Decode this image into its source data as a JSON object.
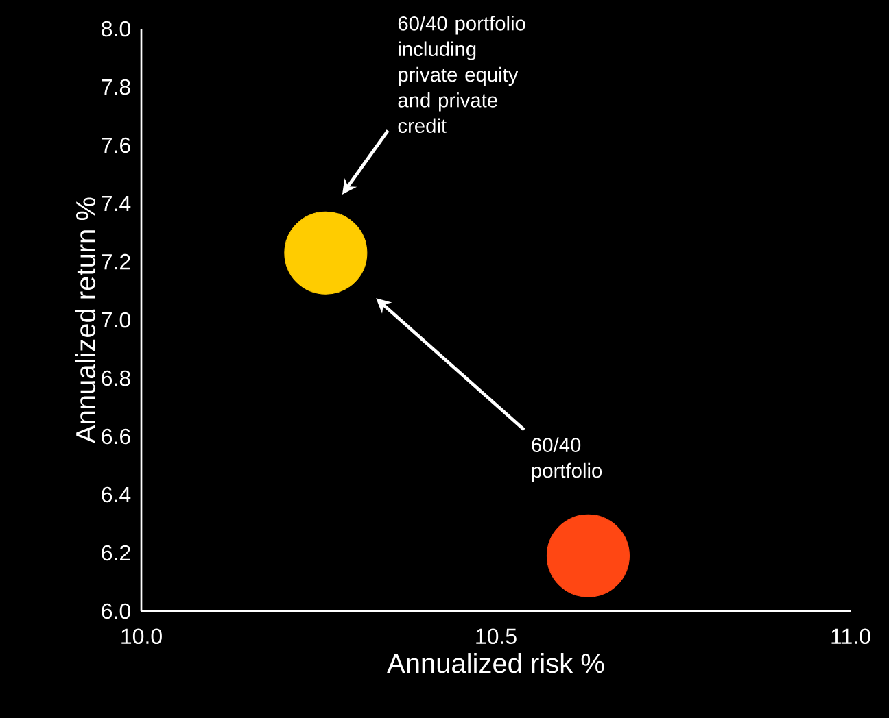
{
  "chart_data": {
    "type": "scatter",
    "xlabel": "Annualized risk %",
    "ylabel": "Annualized return %",
    "xlim": [
      10,
      11
    ],
    "ylim": [
      6,
      8
    ],
    "xticks": [
      {
        "value": 10,
        "label": "10.0"
      },
      {
        "value": 10.5,
        "label": "10.5"
      },
      {
        "value": 11,
        "label": "11.0"
      }
    ],
    "yticks": [
      {
        "value": 6,
        "label": "6.0"
      },
      {
        "value": 6.2,
        "label": "6.2"
      },
      {
        "value": 6.4,
        "label": "6.4"
      },
      {
        "value": 6.6,
        "label": "6.6"
      },
      {
        "value": 6.8,
        "label": "6.8"
      },
      {
        "value": 7,
        "label": "7.0"
      },
      {
        "value": 7.2,
        "label": "7.2"
      },
      {
        "value": 7.4,
        "label": "7.4"
      },
      {
        "value": 7.6,
        "label": "7.6"
      },
      {
        "value": 7.8,
        "label": "7.8"
      },
      {
        "value": 8,
        "label": "8.0"
      }
    ],
    "series": [
      {
        "color": "#ffcc00",
        "x": [
          10.26
        ],
        "values": [
          7.23
        ]
      },
      {
        "color": "#ff4713",
        "x": [
          10.63
        ],
        "values": [
          6.19
        ]
      }
    ],
    "annotations": [
      "60/40 portfolio including private equity and private credit",
      "60/40 portfolio"
    ]
  }
}
